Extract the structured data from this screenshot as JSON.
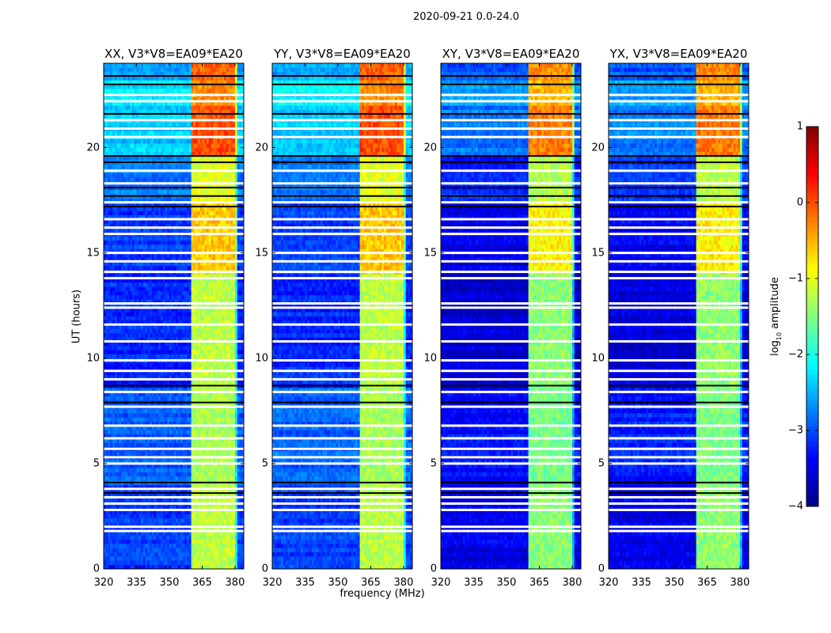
{
  "chart_data": {
    "type": "heatmap",
    "title": "2020-09-21 0.0-24.0",
    "xlabel": "frequency (MHz)",
    "ylabel": "UT (hours)",
    "xlim": [
      320,
      384
    ],
    "ylim": [
      0,
      24
    ],
    "xticks": [
      320,
      335,
      350,
      365,
      380
    ],
    "yticks": [
      0,
      5,
      10,
      15,
      20
    ],
    "colorbar": {
      "label_prefix": "log",
      "label_sub": "10",
      "label_suffix": " amplitude",
      "range": [
        -4,
        1
      ],
      "ticks": [
        1,
        0,
        -1,
        -2,
        -3,
        -4
      ],
      "tick_labels": [
        "1",
        "0",
        "−1",
        "−2",
        "−3",
        "−4"
      ],
      "colormap": "jet"
    },
    "rfi_columns_mhz": [
      [
        360.5,
        364.5
      ],
      [
        365,
        369.5
      ],
      [
        370,
        374.5
      ],
      [
        375.5,
        380
      ]
    ],
    "flagged_white_hours": [
      22.5,
      22.2,
      21.3,
      20.9,
      20.5,
      18.9,
      18.3,
      17.4,
      16.6,
      16.2,
      15.9,
      15.0,
      14.6,
      14.1,
      13.8,
      12.6,
      12.4,
      11.6,
      10.8,
      9.9,
      9.4,
      9.0,
      8.4,
      7.7,
      6.8,
      6.2,
      5.7,
      5.3,
      5.0,
      3.8,
      3.4,
      3.1,
      2.8,
      2.0,
      1.8
    ],
    "flagged_black_hours": [
      23.4,
      23.0,
      21.6,
      19.6,
      19.3,
      18.1,
      17.7,
      17.2,
      8.7,
      7.9,
      4.1,
      3.6
    ],
    "segments": [
      {
        "from": 23.3,
        "to": 24.0,
        "background": -2.6,
        "rfi": -0.1
      },
      {
        "from": 22.0,
        "to": 23.3,
        "background": -2.2,
        "rfi": -0.3
      },
      {
        "from": 19.7,
        "to": 22.0,
        "background": -2.4,
        "rfi": 0.0
      },
      {
        "from": 17.5,
        "to": 19.7,
        "background": -2.8,
        "rfi": -1.0
      },
      {
        "from": 14.0,
        "to": 17.5,
        "background": -3.1,
        "rfi": -0.6
      },
      {
        "from": 8.7,
        "to": 14.0,
        "background": -3.2,
        "rfi": -1.2
      },
      {
        "from": 4.0,
        "to": 8.7,
        "background": -2.9,
        "rfi": -1.3
      },
      {
        "from": 0.0,
        "to": 4.0,
        "background": -3.1,
        "rfi": -1.2
      }
    ],
    "panels": [
      {
        "title": "XX, V3*V8=EA09*EA20",
        "offset": 0.0
      },
      {
        "title": "YY, V3*V8=EA09*EA20",
        "offset": 0.0
      },
      {
        "title": "XY, V3*V8=EA09*EA20",
        "offset": -0.4
      },
      {
        "title": "YX, V3*V8=EA09*EA20",
        "offset": -0.35
      }
    ]
  }
}
